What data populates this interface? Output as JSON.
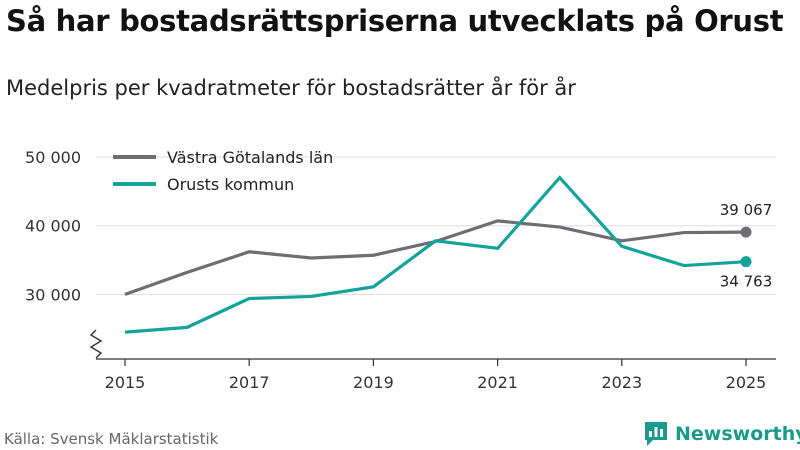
{
  "header": {
    "title": "Så har bostadsrättspriserna utvecklats på Orust",
    "subtitle": "Medelpris per kvadratmeter för bostadsrätter år för år"
  },
  "footer": {
    "source": "Källa: Svensk Mäklarstatistik",
    "brand": "Newsworthy"
  },
  "colors": {
    "vastra_gotaland": "#6e6d73",
    "orust": "#13a39b",
    "grid": "#dddddd",
    "axis": "#333333",
    "brand": "#1a9a8b"
  },
  "chart_data": {
    "type": "line",
    "title": "Så har bostadsrättspriserna utvecklats på Orust",
    "subtitle": "Medelpris per kvadratmeter för bostadsrätter år för år",
    "xlabel": "",
    "ylabel": "",
    "x": [
      2015,
      2016,
      2017,
      2018,
      2019,
      2020,
      2021,
      2022,
      2023,
      2024,
      2025
    ],
    "x_ticks": [
      "2015",
      "2017",
      "2019",
      "2021",
      "2023",
      "2025"
    ],
    "y_ticks": [
      30000,
      40000,
      50000
    ],
    "y_tick_labels": [
      "30 000",
      "40 000",
      "50 000"
    ],
    "ylim": [
      20000,
      50000
    ],
    "axis_break": true,
    "legend_position": "top-left",
    "series": [
      {
        "name": "Västra Götalands län",
        "color": "#6e6d73",
        "values": [
          30000,
          33200,
          36200,
          35300,
          35700,
          37700,
          40700,
          39800,
          37800,
          39000,
          39067
        ],
        "end_label": "39 067"
      },
      {
        "name": "Orusts kommun",
        "color": "#13a39b",
        "values": [
          24500,
          25200,
          29400,
          29700,
          31100,
          37800,
          36700,
          47000,
          37000,
          34200,
          34763
        ],
        "end_label": "34 763"
      }
    ]
  }
}
